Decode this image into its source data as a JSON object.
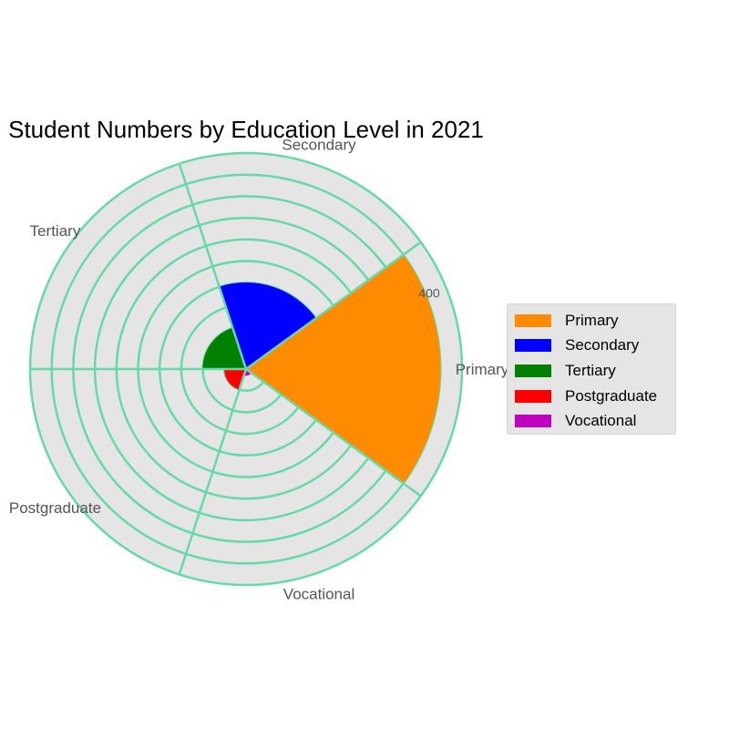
{
  "chart_data": {
    "type": "polar-bar",
    "title": "Student Numbers by Education Level in 2021",
    "categories": [
      "Primary",
      "Secondary",
      "Tertiary",
      "Postgraduate",
      "Vocational"
    ],
    "values": [
      450,
      200,
      100,
      50,
      15
    ],
    "colors": [
      "#ff8c00",
      "#0000ff",
      "#008000",
      "#ff0000",
      "#c000c0"
    ],
    "rmax": 500,
    "grid_step": 50,
    "radial_tick_labels": [
      {
        "value": 400,
        "text": "400"
      }
    ],
    "grid": true,
    "grid_color": "#66d9a8",
    "background_color": "#e5e5e5",
    "legend": {
      "placement": "right",
      "entries": [
        "Primary",
        "Secondary",
        "Tertiary",
        "Postgraduate",
        "Vocational"
      ]
    }
  }
}
